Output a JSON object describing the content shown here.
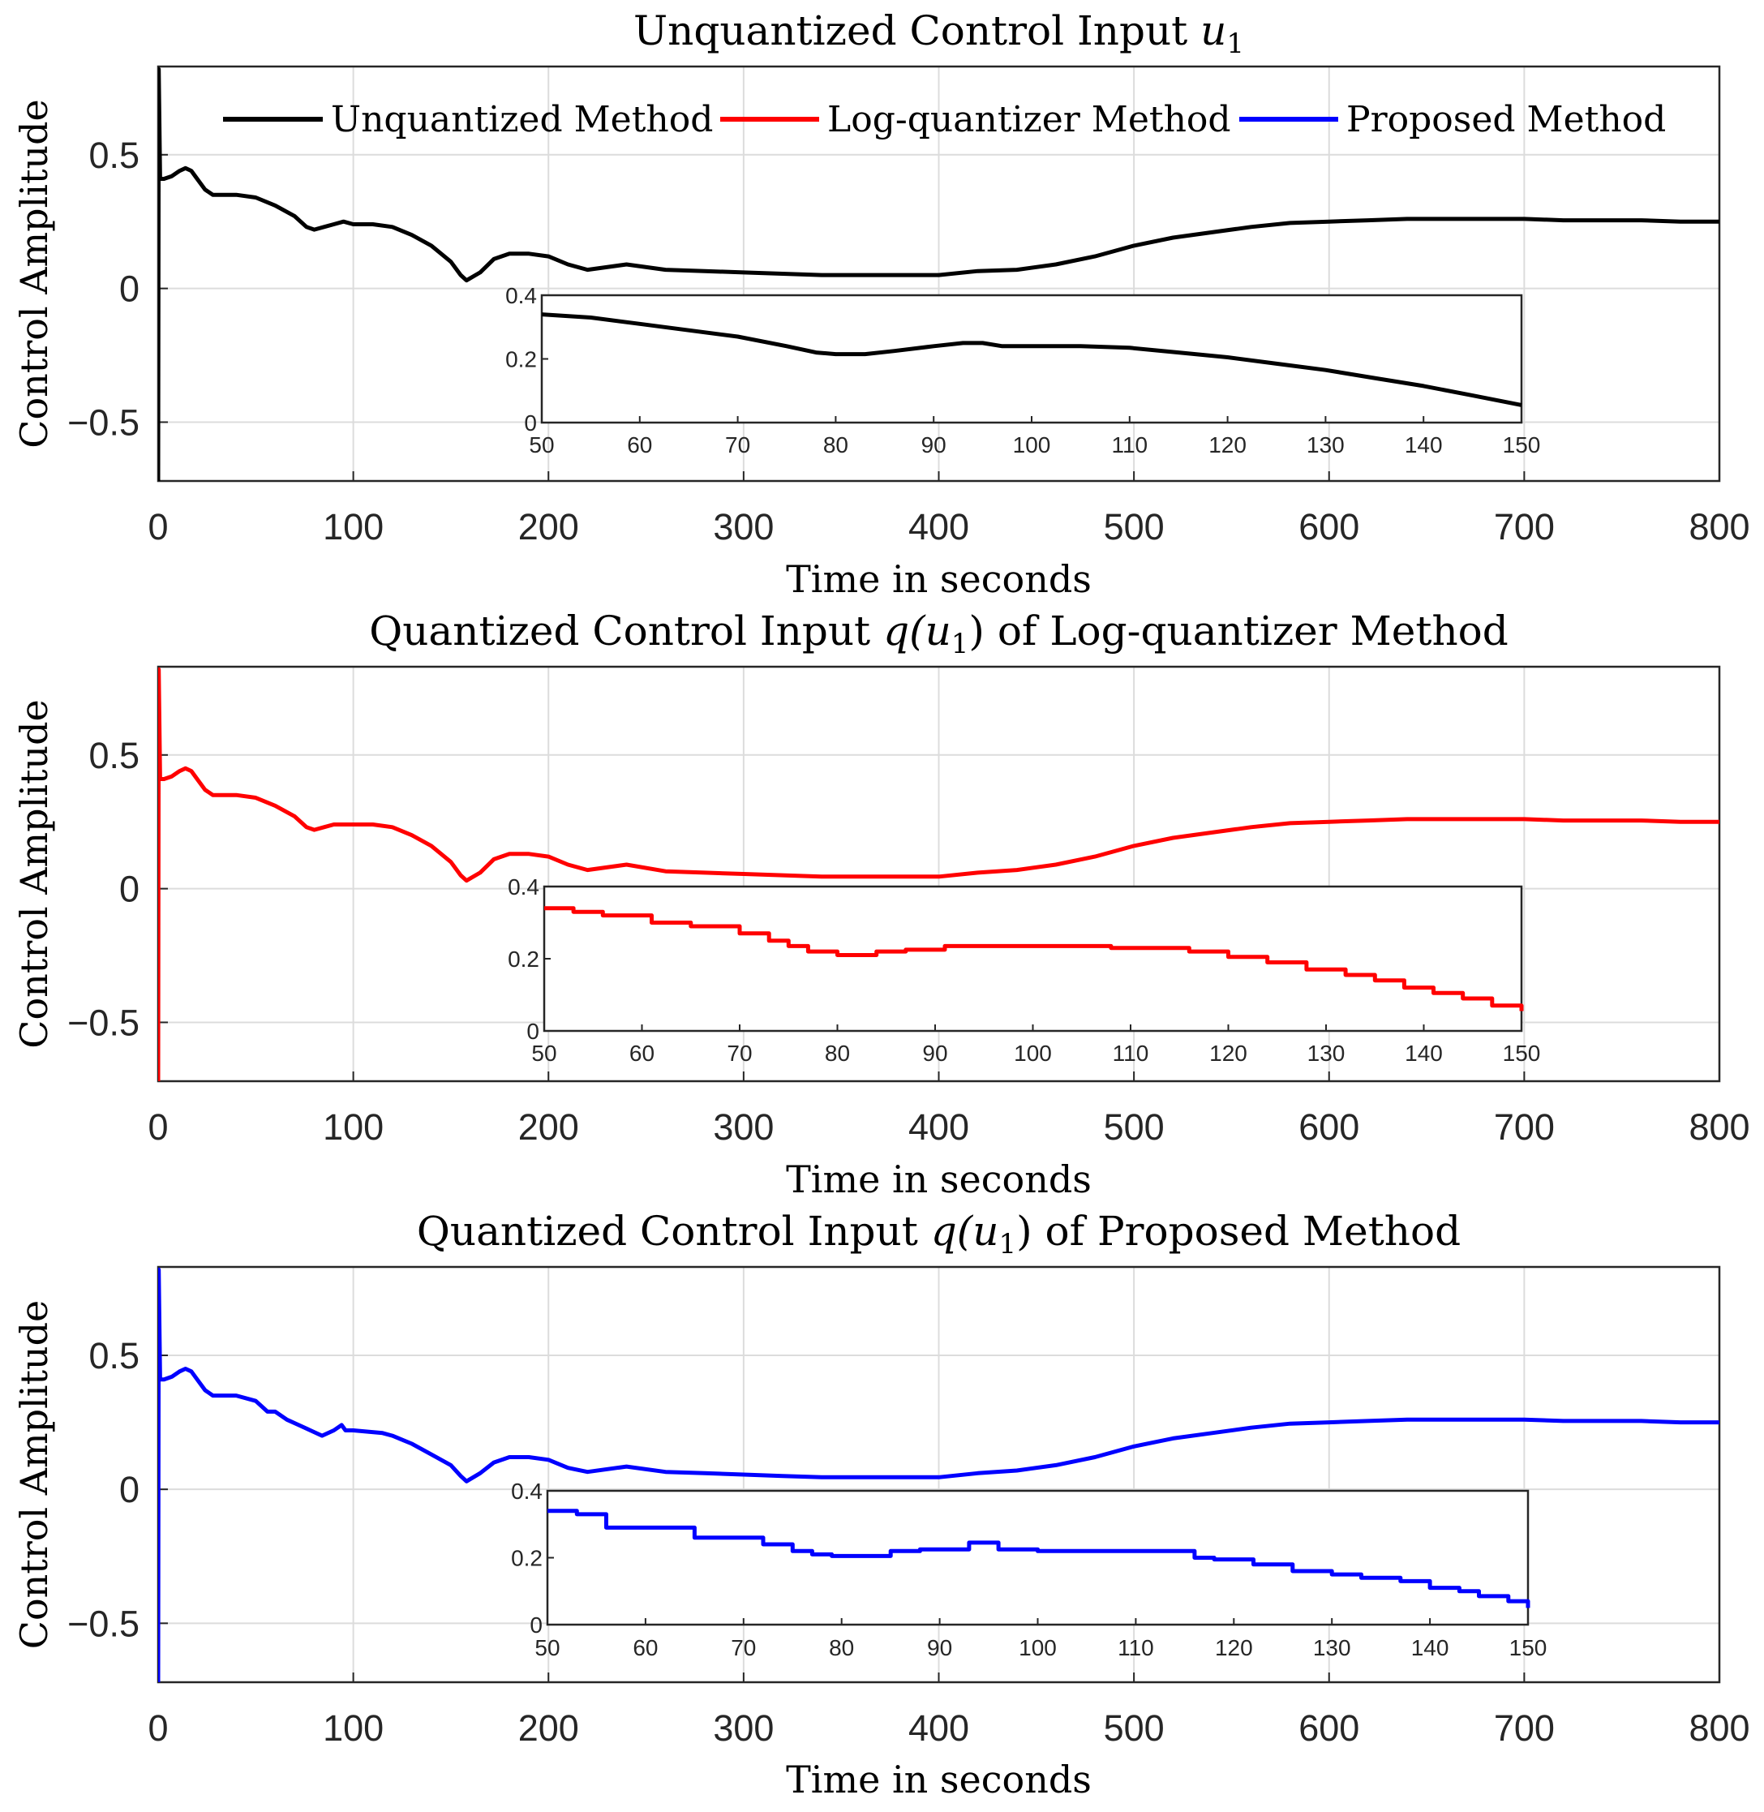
{
  "chart_data": [
    {
      "type": "line",
      "title": "Unquantized Control Input u1",
      "title_parts": [
        "Unquantized Control Input ",
        "u",
        "1",
        ""
      ],
      "xlabel": "Time in seconds",
      "ylabel": "Control Amplitude",
      "xlim": [
        0,
        800
      ],
      "ylim": [
        -0.72,
        0.83
      ],
      "xticks": [
        "0",
        "100",
        "200",
        "300",
        "400",
        "500",
        "600",
        "700",
        "800"
      ],
      "yticks": [
        "0.5",
        "0",
        "−0.5"
      ],
      "grid": true,
      "color": "#000000",
      "legend": {
        "placement": "top",
        "entries": [
          {
            "label": "Unquantized Method",
            "color": "#000000"
          },
          {
            "label": "Log-quantizer Method",
            "color": "#ff0000"
          },
          {
            "label": "Proposed Method",
            "color": "#0000ff"
          }
        ]
      },
      "series": [
        {
          "name": "Unquantized Method",
          "quantized": "none",
          "x": [
            0,
            0.3,
            1,
            3,
            7,
            11,
            14,
            17,
            20,
            24,
            28,
            32,
            40,
            50,
            60,
            70,
            76,
            80,
            85,
            90,
            95,
            100,
            110,
            120,
            130,
            140,
            150,
            155,
            158,
            165,
            172,
            180,
            190,
            200,
            210,
            220,
            240,
            260,
            280,
            300,
            320,
            340,
            360,
            380,
            400,
            420,
            440,
            460,
            480,
            500,
            520,
            540,
            560,
            580,
            600,
            620,
            640,
            660,
            680,
            700,
            720,
            740,
            760,
            780,
            800
          ],
          "y": [
            -0.72,
            0.82,
            0.41,
            0.41,
            0.42,
            0.44,
            0.45,
            0.44,
            0.41,
            0.37,
            0.35,
            0.35,
            0.35,
            0.34,
            0.31,
            0.27,
            0.23,
            0.22,
            0.23,
            0.24,
            0.25,
            0.24,
            0.24,
            0.23,
            0.2,
            0.16,
            0.1,
            0.05,
            0.03,
            0.06,
            0.11,
            0.13,
            0.13,
            0.12,
            0.09,
            0.07,
            0.09,
            0.07,
            0.065,
            0.06,
            0.055,
            0.05,
            0.05,
            0.05,
            0.05,
            0.065,
            0.07,
            0.09,
            0.12,
            0.16,
            0.19,
            0.21,
            0.23,
            0.245,
            0.25,
            0.255,
            0.26,
            0.26,
            0.26,
            0.26,
            0.255,
            0.255,
            0.255,
            0.25,
            0.25
          ]
        }
      ],
      "inset": {
        "xlim": [
          50,
          150
        ],
        "ylim": [
          0,
          0.4
        ],
        "xticks": [
          "50",
          "60",
          "70",
          "80",
          "90",
          "100",
          "110",
          "120",
          "130",
          "140",
          "150"
        ],
        "yticks": [
          "0.4",
          "0.2",
          "0"
        ],
        "x": [
          50,
          55,
          60,
          65,
          70,
          75,
          78,
          80,
          83,
          86,
          90,
          93,
          95,
          97,
          100,
          105,
          110,
          115,
          120,
          125,
          130,
          135,
          140,
          145,
          150
        ],
        "y": [
          0.34,
          0.33,
          0.31,
          0.29,
          0.27,
          0.24,
          0.22,
          0.215,
          0.215,
          0.225,
          0.24,
          0.25,
          0.25,
          0.24,
          0.24,
          0.24,
          0.235,
          0.22,
          0.205,
          0.185,
          0.165,
          0.14,
          0.115,
          0.085,
          0.055
        ],
        "step": false
      }
    },
    {
      "type": "line",
      "title": "Quantized Control Input q(u1) of Log-quantizer Method",
      "title_parts": [
        "Quantized Control Input ",
        "q(u",
        "1",
        ") of Log-quantizer Method"
      ],
      "xlabel": "Time in seconds",
      "ylabel": "Control Amplitude",
      "xlim": [
        0,
        800
      ],
      "ylim": [
        -0.72,
        0.83
      ],
      "xticks": [
        "0",
        "100",
        "200",
        "300",
        "400",
        "500",
        "600",
        "700",
        "800"
      ],
      "yticks": [
        "0.5",
        "0",
        "−0.5"
      ],
      "grid": true,
      "color": "#ff0000",
      "series": [
        {
          "name": "Log-quantizer Method",
          "quantized": "logarithmic",
          "x": [
            0,
            0.3,
            1,
            3,
            7,
            11,
            14,
            17,
            20,
            24,
            28,
            32,
            40,
            50,
            60,
            70,
            76,
            80,
            85,
            90,
            95,
            100,
            110,
            120,
            130,
            140,
            150,
            155,
            158,
            165,
            172,
            180,
            190,
            200,
            210,
            220,
            240,
            260,
            280,
            300,
            320,
            340,
            360,
            380,
            400,
            420,
            440,
            460,
            480,
            500,
            520,
            540,
            560,
            580,
            600,
            620,
            640,
            660,
            680,
            700,
            720,
            740,
            760,
            780,
            800
          ],
          "y": [
            -0.72,
            0.82,
            0.41,
            0.41,
            0.42,
            0.44,
            0.45,
            0.44,
            0.41,
            0.37,
            0.35,
            0.35,
            0.35,
            0.34,
            0.31,
            0.27,
            0.23,
            0.22,
            0.23,
            0.24,
            0.24,
            0.24,
            0.24,
            0.23,
            0.2,
            0.16,
            0.1,
            0.05,
            0.03,
            0.06,
            0.11,
            0.13,
            0.13,
            0.12,
            0.09,
            0.07,
            0.09,
            0.065,
            0.06,
            0.055,
            0.05,
            0.045,
            0.045,
            0.045,
            0.045,
            0.06,
            0.07,
            0.09,
            0.12,
            0.16,
            0.19,
            0.21,
            0.23,
            0.245,
            0.25,
            0.255,
            0.26,
            0.26,
            0.26,
            0.26,
            0.255,
            0.255,
            0.255,
            0.25,
            0.25
          ]
        }
      ],
      "inset": {
        "xlim": [
          50,
          150
        ],
        "ylim": [
          0,
          0.4
        ],
        "xticks": [
          "50",
          "60",
          "70",
          "80",
          "90",
          "100",
          "110",
          "120",
          "130",
          "140",
          "150"
        ],
        "yticks": [
          "0.4",
          "0.2",
          "0"
        ],
        "x": [
          50,
          53,
          56,
          61,
          65,
          70,
          73,
          75,
          77,
          80,
          84,
          87,
          91,
          108,
          116,
          120,
          124,
          128,
          132,
          135,
          138,
          141,
          144,
          147,
          150
        ],
        "y": [
          0.34,
          0.33,
          0.32,
          0.3,
          0.29,
          0.27,
          0.25,
          0.235,
          0.22,
          0.21,
          0.22,
          0.225,
          0.235,
          0.23,
          0.22,
          0.205,
          0.19,
          0.17,
          0.155,
          0.14,
          0.12,
          0.105,
          0.09,
          0.07,
          0.055
        ],
        "step": true
      }
    },
    {
      "type": "line",
      "title": "Quantized Control Input q(u1) of Proposed Method",
      "title_parts": [
        "Quantized Control Input ",
        "q(u",
        "1",
        ") of Proposed Method"
      ],
      "xlabel": "Time in seconds",
      "ylabel": "Control Amplitude",
      "xlim": [
        0,
        800
      ],
      "ylim": [
        -0.72,
        0.83
      ],
      "xticks": [
        "0",
        "100",
        "200",
        "300",
        "400",
        "500",
        "600",
        "700",
        "800"
      ],
      "yticks": [
        "0.5",
        "0",
        "−0.5"
      ],
      "grid": true,
      "color": "#0000ff",
      "series": [
        {
          "name": "Proposed Method",
          "quantized": "proposed",
          "x": [
            0,
            0.3,
            1,
            3,
            7,
            11,
            14,
            17,
            20,
            24,
            28,
            32,
            40,
            50,
            56,
            60,
            66,
            72,
            78,
            84,
            90,
            94,
            96,
            100,
            115,
            120,
            130,
            140,
            150,
            155,
            158,
            165,
            172,
            180,
            190,
            200,
            210,
            220,
            240,
            260,
            280,
            300,
            320,
            340,
            360,
            380,
            400,
            420,
            440,
            460,
            480,
            500,
            520,
            540,
            560,
            580,
            600,
            620,
            640,
            660,
            680,
            700,
            720,
            740,
            760,
            780,
            800
          ],
          "y": [
            -0.72,
            0.82,
            0.41,
            0.41,
            0.42,
            0.44,
            0.45,
            0.44,
            0.41,
            0.37,
            0.35,
            0.35,
            0.35,
            0.33,
            0.29,
            0.29,
            0.26,
            0.24,
            0.22,
            0.2,
            0.22,
            0.24,
            0.22,
            0.22,
            0.21,
            0.2,
            0.17,
            0.13,
            0.09,
            0.05,
            0.03,
            0.06,
            0.1,
            0.12,
            0.12,
            0.11,
            0.08,
            0.065,
            0.085,
            0.065,
            0.06,
            0.055,
            0.05,
            0.045,
            0.045,
            0.045,
            0.045,
            0.06,
            0.07,
            0.09,
            0.12,
            0.16,
            0.19,
            0.21,
            0.23,
            0.245,
            0.25,
            0.255,
            0.26,
            0.26,
            0.26,
            0.26,
            0.255,
            0.255,
            0.255,
            0.25,
            0.25
          ]
        }
      ],
      "inset": {
        "xlim": [
          50,
          150
        ],
        "ylim": [
          0,
          0.4
        ],
        "xticks": [
          "50",
          "60",
          "70",
          "80",
          "90",
          "100",
          "110",
          "120",
          "130",
          "140",
          "150"
        ],
        "yticks": [
          "0.4",
          "0.2",
          "0"
        ],
        "x": [
          50,
          53,
          56,
          60,
          65,
          70,
          72,
          75,
          77,
          79,
          85,
          88,
          90,
          93,
          95,
          96,
          100,
          116,
          118,
          122,
          126,
          130,
          133,
          137,
          140,
          143,
          145,
          148,
          150
        ],
        "y": [
          0.34,
          0.33,
          0.29,
          0.29,
          0.26,
          0.26,
          0.24,
          0.22,
          0.21,
          0.205,
          0.22,
          0.225,
          0.225,
          0.245,
          0.245,
          0.225,
          0.22,
          0.2,
          0.195,
          0.18,
          0.16,
          0.15,
          0.14,
          0.13,
          0.11,
          0.1,
          0.085,
          0.07,
          0.05
        ],
        "step": true
      }
    }
  ]
}
